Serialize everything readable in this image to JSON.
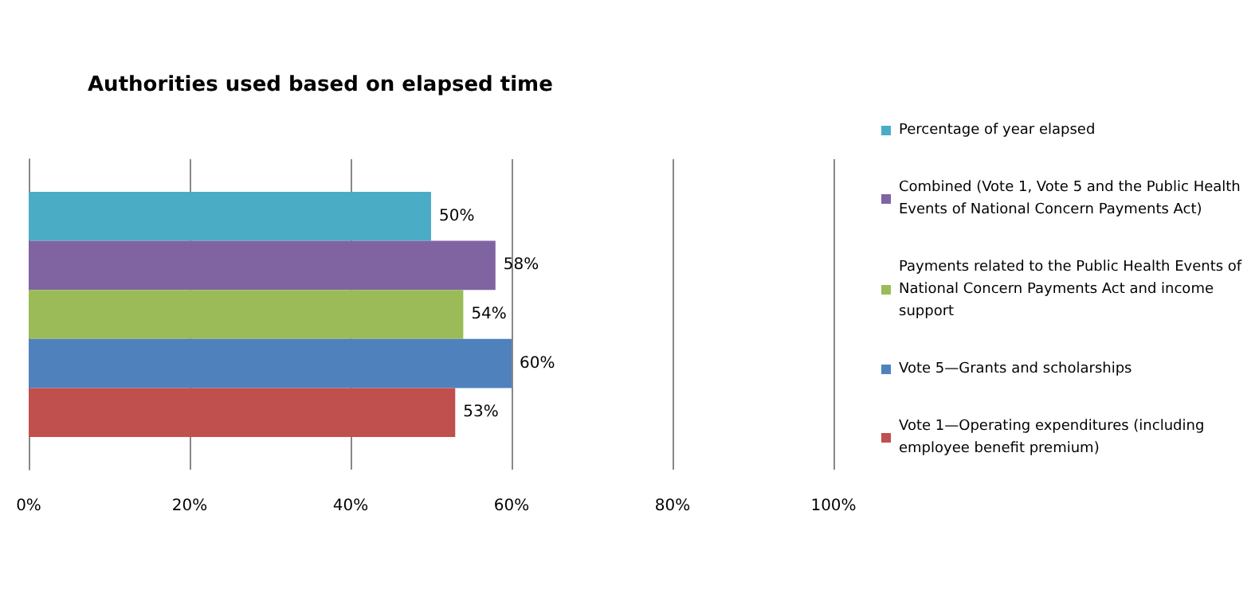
{
  "chart_data": {
    "type": "bar",
    "orientation": "horizontal",
    "title": "Authorities used based on elapsed time",
    "categories": [
      null
    ],
    "series": [
      {
        "name": "Percentage of year elapsed",
        "color": "#4bacc6",
        "values": [
          50
        ],
        "value_labels": [
          "50%"
        ]
      },
      {
        "name": "Combined (Vote 1, Vote 5 and the Public Health Events of National Concern Payments Act)",
        "color": "#8064a2",
        "values": [
          58
        ],
        "value_labels": [
          "58%"
        ]
      },
      {
        "name": "Payments related to the Public Health Events of National Concern Payments Act and income support",
        "color": "#9bbb59",
        "values": [
          54
        ],
        "value_labels": [
          "54%"
        ]
      },
      {
        "name": "Vote 5—Grants and scholarships",
        "color": "#4f81bd",
        "values": [
          60
        ],
        "value_labels": [
          "60%"
        ]
      },
      {
        "name": "Vote 1—Operating expenditures (including employee benefit premium)",
        "color": "#c0504d",
        "values": [
          53
        ],
        "value_labels": [
          "53%"
        ]
      }
    ],
    "xlim": [
      0,
      100
    ],
    "xticks": [
      {
        "value": 0,
        "label": "0%"
      },
      {
        "value": 20,
        "label": "20%"
      },
      {
        "value": 40,
        "label": "40%"
      },
      {
        "value": 60,
        "label": "60%"
      },
      {
        "value": 80,
        "label": "80%"
      },
      {
        "value": 100,
        "label": "100%"
      }
    ],
    "grid": "x",
    "legend": "right"
  }
}
